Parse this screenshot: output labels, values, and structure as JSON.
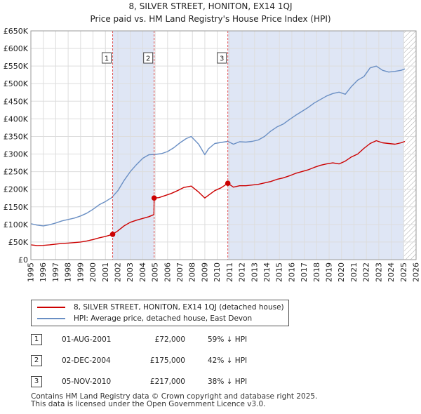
{
  "colors": {
    "property_line": "#cc0000",
    "hpi_line": "#6a8fc4",
    "shade": "#dfe6f5",
    "grid": "#dddddd",
    "vline": "#e05050"
  },
  "chart_data": {
    "type": "line",
    "title": "8, SILVER STREET, HONITON, EX14 1QJ",
    "subtitle": "Price paid vs. HM Land Registry's House Price Index (HPI)",
    "xlim": [
      1995,
      2026
    ],
    "ylim": [
      0,
      650000
    ],
    "x_ticks": [
      1995,
      1996,
      1997,
      1998,
      1999,
      2000,
      2001,
      2002,
      2003,
      2004,
      2005,
      2006,
      2007,
      2008,
      2009,
      2010,
      2011,
      2012,
      2013,
      2014,
      2015,
      2016,
      2017,
      2018,
      2019,
      2020,
      2021,
      2022,
      2023,
      2024,
      2025,
      2026
    ],
    "y_ticks": [
      {
        "value": 0,
        "label": "£0"
      },
      {
        "value": 50000,
        "label": "£50K"
      },
      {
        "value": 100000,
        "label": "£100K"
      },
      {
        "value": 150000,
        "label": "£150K"
      },
      {
        "value": 200000,
        "label": "£200K"
      },
      {
        "value": 250000,
        "label": "£250K"
      },
      {
        "value": 300000,
        "label": "£300K"
      },
      {
        "value": 350000,
        "label": "£350K"
      },
      {
        "value": 400000,
        "label": "£400K"
      },
      {
        "value": 450000,
        "label": "£450K"
      },
      {
        "value": 500000,
        "label": "£500K"
      },
      {
        "value": 550000,
        "label": "£550K"
      },
      {
        "value": 600000,
        "label": "£600K"
      },
      {
        "value": 650000,
        "label": "£650K"
      }
    ],
    "shaded_spans": [
      [
        2001.58,
        2004.92
      ],
      [
        2010.85,
        2025.0
      ]
    ],
    "hatched_span": [
      2025.0,
      2026.0
    ],
    "series": [
      {
        "name": "8, SILVER STREET, HONITON, EX14 1QJ (detached house)",
        "x": [
          1995.0,
          1995.5,
          1996.0,
          1996.5,
          1997.0,
          1997.5,
          1998.0,
          1998.5,
          1999.0,
          1999.5,
          2000.0,
          2000.5,
          2001.0,
          2001.58,
          2002.0,
          2002.5,
          2003.0,
          2003.5,
          2004.0,
          2004.5,
          2004.9,
          2004.92,
          2005.3,
          2005.8,
          2006.3,
          2006.8,
          2007.3,
          2007.9,
          2008.5,
          2009.0,
          2009.3,
          2009.8,
          2010.3,
          2010.85,
          2011.3,
          2011.8,
          2012.3,
          2012.8,
          2013.3,
          2013.8,
          2014.3,
          2014.8,
          2015.3,
          2015.8,
          2016.3,
          2016.8,
          2017.3,
          2017.8,
          2018.3,
          2018.8,
          2019.3,
          2019.8,
          2020.3,
          2020.8,
          2021.3,
          2021.8,
          2022.3,
          2022.8,
          2023.3,
          2023.8,
          2024.3,
          2024.8,
          2025.1
        ],
        "values": [
          42000,
          40000,
          40500,
          42000,
          44000,
          46000,
          47000,
          48500,
          50000,
          53000,
          57000,
          62000,
          66000,
          72000,
          82000,
          96000,
          106000,
          112000,
          117000,
          122000,
          128000,
          175000,
          176000,
          182000,
          188000,
          196000,
          205000,
          209000,
          192000,
          175000,
          183000,
          196000,
          204000,
          217000,
          206000,
          210000,
          210000,
          212000,
          214000,
          218000,
          222000,
          228000,
          232000,
          238000,
          245000,
          250000,
          255000,
          262000,
          268000,
          272000,
          275000,
          272000,
          280000,
          292000,
          300000,
          316000,
          330000,
          338000,
          332000,
          330000,
          328000,
          332000,
          336000
        ]
      },
      {
        "name": "HPI: Average price, detached house, East Devon",
        "x": [
          1995.0,
          1995.5,
          1996.0,
          1996.5,
          1997.0,
          1997.5,
          1998.0,
          1998.5,
          1999.0,
          1999.5,
          2000.0,
          2000.5,
          2001.0,
          2001.5,
          2002.0,
          2002.5,
          2003.0,
          2003.5,
          2004.0,
          2004.5,
          2005.0,
          2005.5,
          2006.0,
          2006.5,
          2007.0,
          2007.5,
          2007.9,
          2008.5,
          2009.0,
          2009.3,
          2009.8,
          2010.3,
          2010.85,
          2011.3,
          2011.8,
          2012.3,
          2012.8,
          2013.3,
          2013.8,
          2014.3,
          2014.8,
          2015.3,
          2015.8,
          2016.3,
          2016.8,
          2017.3,
          2017.8,
          2018.3,
          2018.8,
          2019.3,
          2019.8,
          2020.3,
          2020.8,
          2021.3,
          2021.8,
          2022.3,
          2022.8,
          2023.3,
          2023.8,
          2024.3,
          2024.8,
          2025.1
        ],
        "values": [
          102000,
          98000,
          96000,
          99000,
          104000,
          110000,
          114000,
          118000,
          124000,
          132000,
          143000,
          156000,
          165000,
          176000,
          196000,
          225000,
          250000,
          270000,
          288000,
          298000,
          299000,
          301000,
          307000,
          318000,
          332000,
          344000,
          350000,
          328000,
          298000,
          315000,
          330000,
          333000,
          336000,
          328000,
          335000,
          334000,
          336000,
          340000,
          350000,
          365000,
          377000,
          385000,
          398000,
          410000,
          421000,
          432000,
          445000,
          455000,
          465000,
          472000,
          476000,
          470000,
          492000,
          510000,
          520000,
          545000,
          550000,
          538000,
          533000,
          535000,
          538000,
          542000
        ]
      }
    ],
    "sales": [
      {
        "label": "1",
        "x": 2001.58,
        "value": 72000
      },
      {
        "label": "2",
        "x": 2004.92,
        "value": 175000
      },
      {
        "label": "3",
        "x": 2010.85,
        "value": 217000
      }
    ]
  },
  "legend": {
    "property_label": "8, SILVER STREET, HONITON, EX14 1QJ (detached house)",
    "hpi_label": "HPI: Average price, detached house, East Devon"
  },
  "sales_table": [
    {
      "num": "1",
      "date": "01-AUG-2001",
      "price": "£72,000",
      "hpi": "59% ↓ HPI"
    },
    {
      "num": "2",
      "date": "02-DEC-2004",
      "price": "£175,000",
      "hpi": "42% ↓ HPI"
    },
    {
      "num": "3",
      "date": "05-NOV-2010",
      "price": "£217,000",
      "hpi": "38% ↓ HPI"
    }
  ],
  "footer": {
    "line1": "Contains HM Land Registry data © Crown copyright and database right 2025.",
    "line2": "This data is licensed under the Open Government Licence v3.0."
  }
}
